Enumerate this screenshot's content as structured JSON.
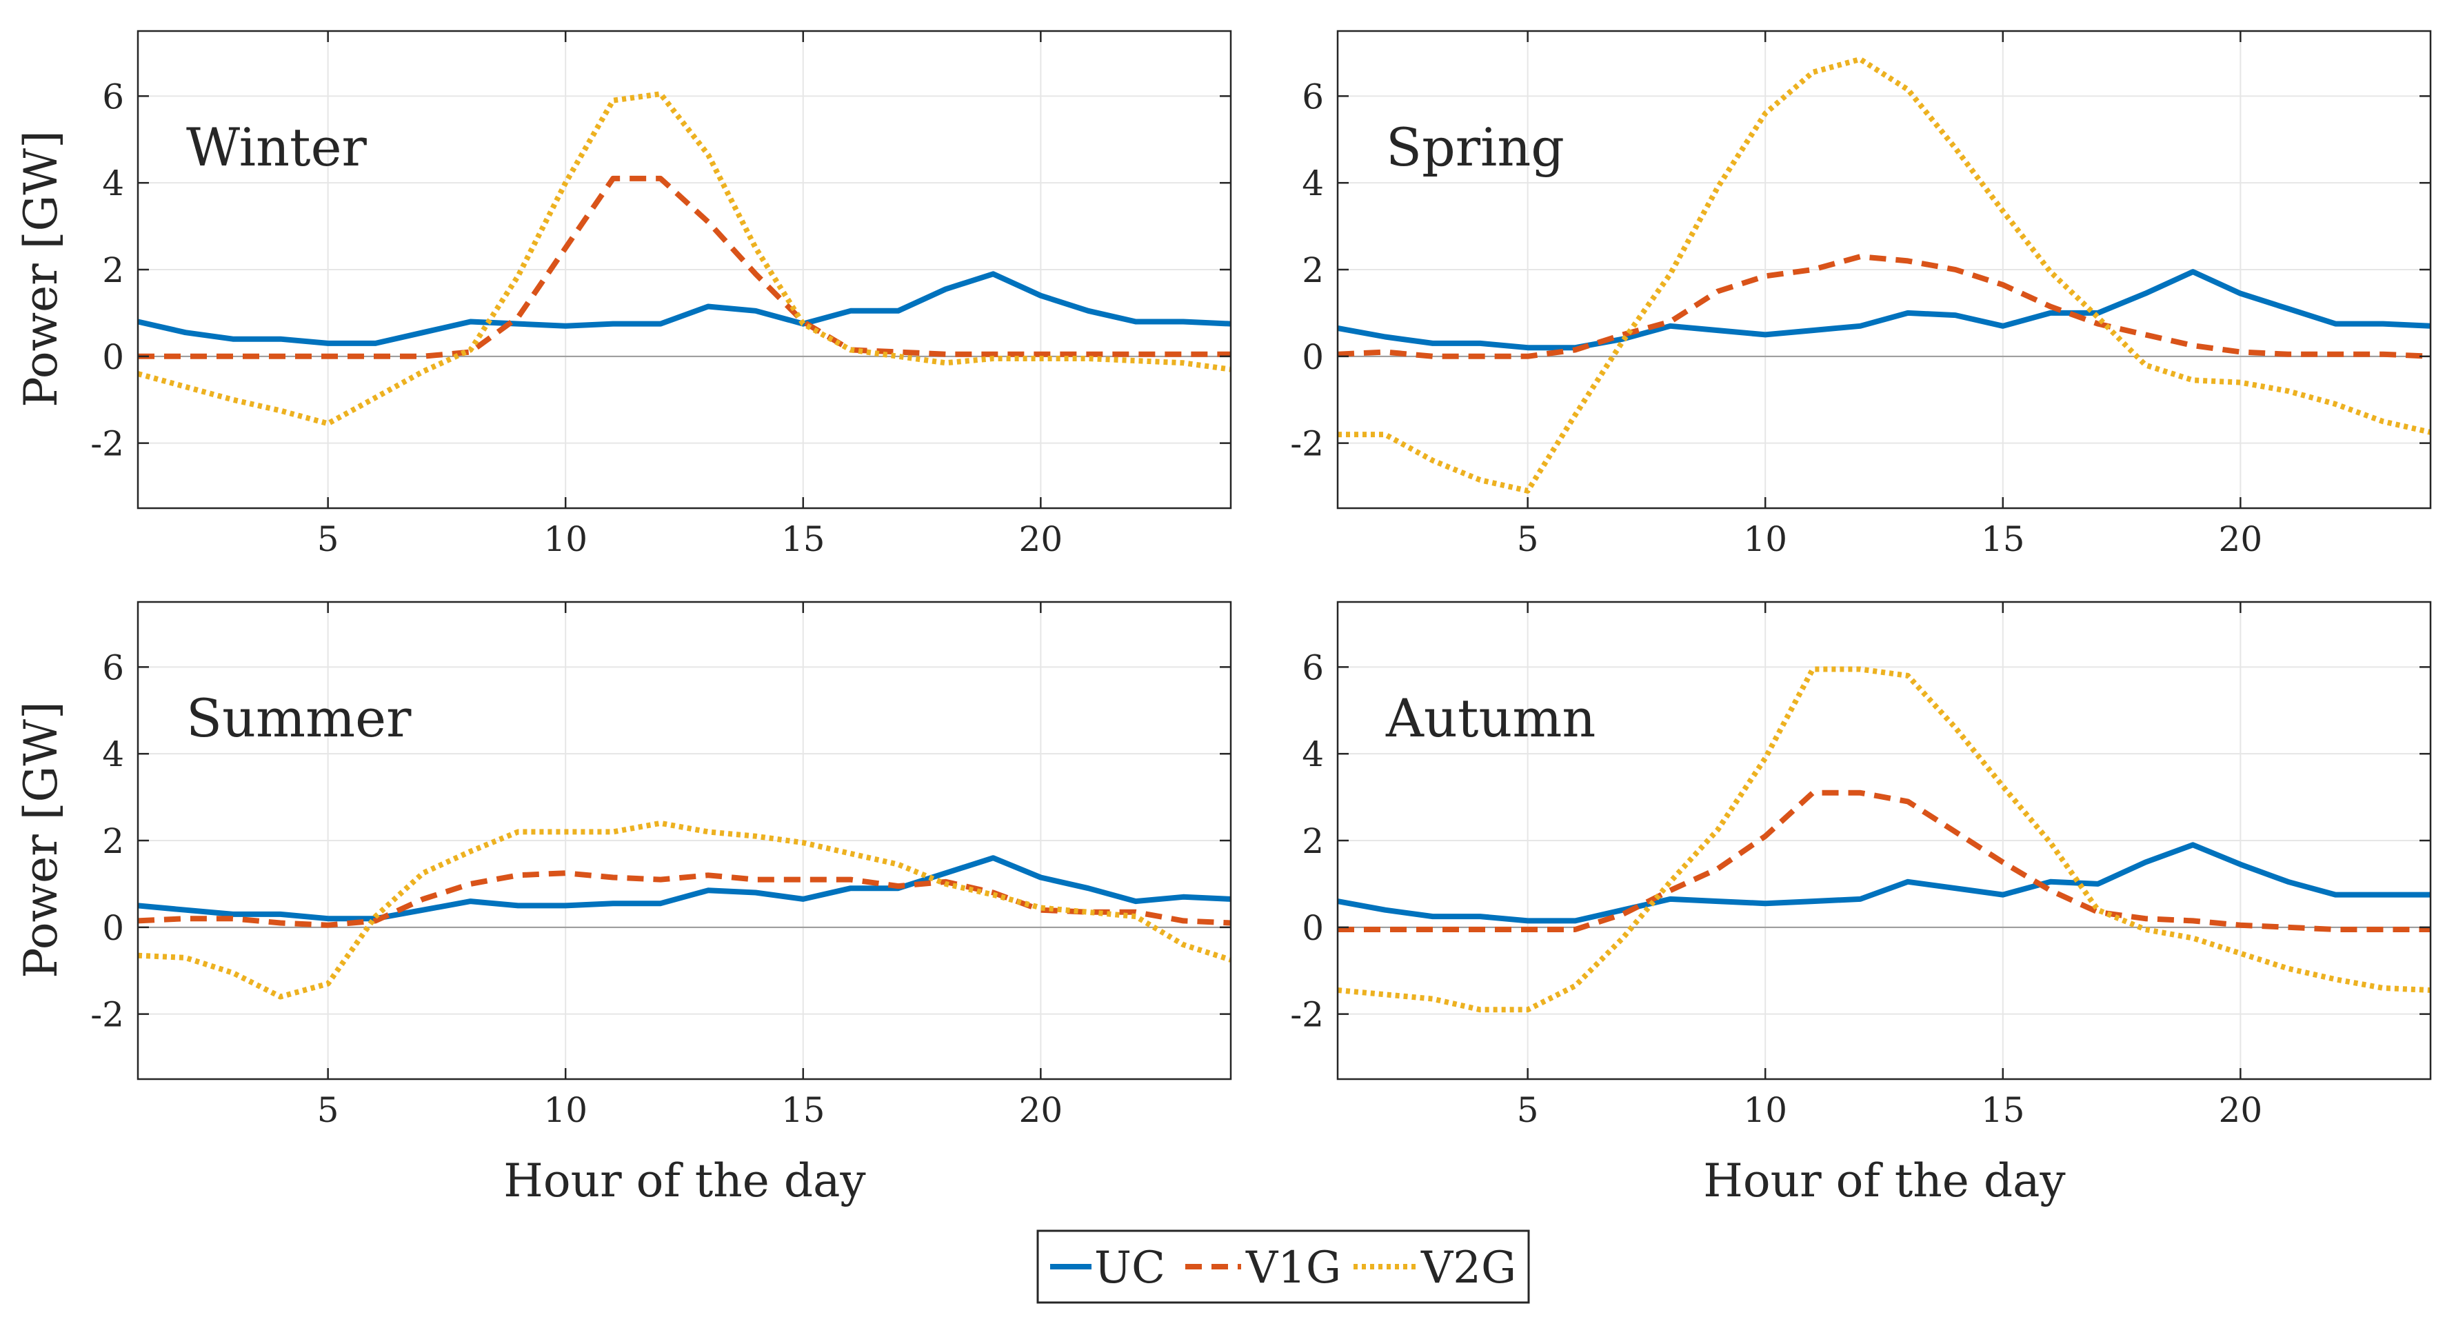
{
  "chart_data": {
    "type": "line",
    "shared": {
      "xlabel": "Hour of the day",
      "ylabel": "Power [GW]",
      "xlim": [
        1,
        24
      ],
      "ylim": [
        -3.5,
        7.5
      ],
      "xticks": [
        5,
        10,
        15,
        20
      ],
      "yticks": [
        -2,
        0,
        2,
        4,
        6
      ],
      "grid": true,
      "x": [
        1,
        2,
        3,
        4,
        5,
        6,
        7,
        8,
        9,
        10,
        11,
        12,
        13,
        14,
        15,
        16,
        17,
        18,
        19,
        20,
        21,
        22,
        23,
        24
      ]
    },
    "legend": {
      "position": "bottom-center",
      "entries": [
        {
          "name": "UC",
          "color": "#0072BD",
          "style": "solid"
        },
        {
          "name": "V1G",
          "color": "#D95319",
          "style": "dashed"
        },
        {
          "name": "V2G",
          "color": "#EDB120",
          "style": "dotted"
        }
      ]
    },
    "panels": [
      {
        "title": "Winter",
        "series": [
          {
            "name": "UC",
            "values": [
              0.8,
              0.55,
              0.4,
              0.4,
              0.3,
              0.3,
              0.55,
              0.8,
              0.75,
              0.7,
              0.75,
              0.75,
              1.15,
              1.05,
              0.75,
              1.05,
              1.05,
              1.55,
              1.9,
              1.4,
              1.05,
              0.8,
              0.8,
              0.75
            ]
          },
          {
            "name": "V1G",
            "values": [
              0.0,
              0.0,
              0.0,
              0.0,
              0.0,
              0.0,
              0.0,
              0.1,
              0.9,
              2.5,
              4.1,
              4.1,
              3.1,
              1.9,
              0.8,
              0.15,
              0.1,
              0.05,
              0.05,
              0.05,
              0.05,
              0.05,
              0.05,
              0.05
            ]
          },
          {
            "name": "V2G",
            "values": [
              -0.4,
              -0.7,
              -1.0,
              -1.25,
              -1.55,
              -0.95,
              -0.35,
              0.15,
              1.85,
              4.0,
              5.9,
              6.05,
              4.65,
              2.5,
              0.75,
              0.15,
              0.0,
              -0.15,
              -0.05,
              -0.05,
              -0.05,
              -0.1,
              -0.15,
              -0.3
            ]
          }
        ]
      },
      {
        "title": "Spring",
        "series": [
          {
            "name": "UC",
            "values": [
              0.65,
              0.45,
              0.3,
              0.3,
              0.2,
              0.2,
              0.4,
              0.7,
              0.6,
              0.5,
              0.6,
              0.7,
              1.0,
              0.95,
              0.7,
              1.0,
              1.0,
              1.45,
              1.95,
              1.45,
              1.1,
              0.75,
              0.75,
              0.7
            ]
          },
          {
            "name": "V1G",
            "values": [
              0.05,
              0.1,
              0.0,
              0.0,
              0.0,
              0.15,
              0.5,
              0.8,
              1.5,
              1.85,
              2.0,
              2.3,
              2.2,
              2.0,
              1.65,
              1.15,
              0.75,
              0.5,
              0.25,
              0.1,
              0.05,
              0.05,
              0.05,
              0.0
            ]
          },
          {
            "name": "V2G",
            "values": [
              -1.8,
              -1.8,
              -2.4,
              -2.85,
              -3.1,
              -1.35,
              0.35,
              1.9,
              3.9,
              5.6,
              6.55,
              6.85,
              6.15,
              4.8,
              3.35,
              1.95,
              0.9,
              -0.2,
              -0.55,
              -0.6,
              -0.8,
              -1.1,
              -1.5,
              -1.75
            ]
          }
        ]
      },
      {
        "title": "Summer",
        "series": [
          {
            "name": "UC",
            "values": [
              0.5,
              0.4,
              0.3,
              0.3,
              0.2,
              0.2,
              0.4,
              0.6,
              0.5,
              0.5,
              0.55,
              0.55,
              0.85,
              0.8,
              0.65,
              0.9,
              0.9,
              1.25,
              1.6,
              1.15,
              0.9,
              0.6,
              0.7,
              0.65
            ]
          },
          {
            "name": "V1G",
            "values": [
              0.15,
              0.2,
              0.2,
              0.1,
              0.05,
              0.15,
              0.65,
              1.0,
              1.2,
              1.25,
              1.15,
              1.1,
              1.2,
              1.1,
              1.1,
              1.1,
              0.95,
              1.05,
              0.8,
              0.4,
              0.35,
              0.35,
              0.15,
              0.1
            ]
          },
          {
            "name": "V2G",
            "values": [
              -0.65,
              -0.7,
              -1.05,
              -1.6,
              -1.3,
              0.25,
              1.25,
              1.75,
              2.2,
              2.2,
              2.2,
              2.4,
              2.2,
              2.1,
              1.95,
              1.7,
              1.45,
              1.0,
              0.75,
              0.45,
              0.35,
              0.25,
              -0.4,
              -0.75
            ]
          }
        ]
      },
      {
        "title": "Autumn",
        "series": [
          {
            "name": "UC",
            "values": [
              0.6,
              0.4,
              0.25,
              0.25,
              0.15,
              0.15,
              0.4,
              0.65,
              0.6,
              0.55,
              0.6,
              0.65,
              1.05,
              0.9,
              0.75,
              1.05,
              1.0,
              1.5,
              1.9,
              1.45,
              1.05,
              0.75,
              0.75,
              0.75
            ]
          },
          {
            "name": "V1G",
            "values": [
              -0.05,
              -0.05,
              -0.05,
              -0.05,
              -0.05,
              -0.05,
              0.3,
              0.85,
              1.35,
              2.1,
              3.1,
              3.1,
              2.9,
              2.2,
              1.5,
              0.85,
              0.35,
              0.2,
              0.15,
              0.05,
              0.0,
              -0.05,
              -0.05,
              -0.05
            ]
          },
          {
            "name": "V2G",
            "values": [
              -1.45,
              -1.55,
              -1.65,
              -1.9,
              -1.9,
              -1.35,
              -0.25,
              1.05,
              2.25,
              3.9,
              5.95,
              5.95,
              5.8,
              4.6,
              3.25,
              1.95,
              0.4,
              -0.05,
              -0.25,
              -0.6,
              -0.95,
              -1.2,
              -1.4,
              -1.45
            ]
          }
        ]
      }
    ]
  }
}
